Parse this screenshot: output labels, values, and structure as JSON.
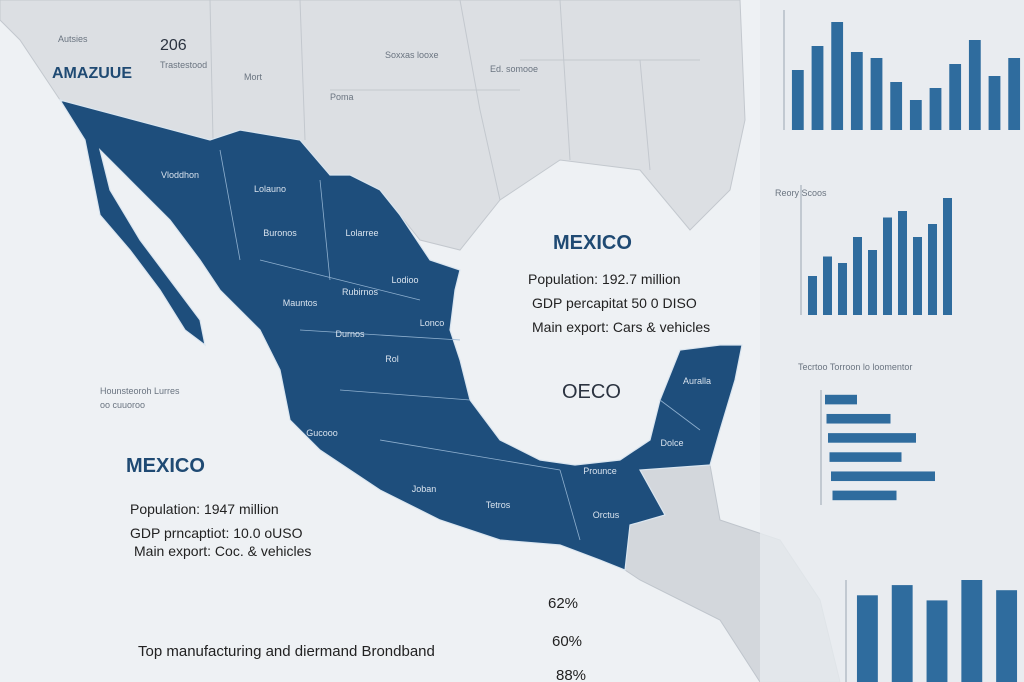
{
  "map": {
    "top_labels": [
      "Autsies",
      "206",
      "AMAZUUE",
      "Trastestood",
      "Mort",
      "Poma",
      "Soxxas looxe",
      "Ed. somooe"
    ],
    "state_labels": [
      "Vloddhon",
      "Lolauno",
      "Buronos",
      "Lolarree",
      "Mauntos",
      "Rubirnos",
      "Lodioo",
      "Lonco",
      "Durnos",
      "Rol",
      "Gucooo",
      "Tetros",
      "Joban",
      "Prounce",
      "Orctus",
      "Auralla",
      "Dolce"
    ],
    "side_labels": [
      "Hounsteoroh Lurres",
      "oo cuuoroo"
    ]
  },
  "info_right": {
    "title": "MEXICO",
    "population": "Population: 192.7 million",
    "gdp": "GDP percapitat 50 0 DISO",
    "export": "Main export: Cars & vehicles",
    "org": "OECO"
  },
  "info_left": {
    "title": "MEXICO",
    "population": "Population: 1947 million",
    "gdp": "GDP prncaptiot: 10.0 oUSO",
    "export": "Main export: Coc. & vehicles"
  },
  "footer": {
    "headline": "Top manufacturing and diermand Brondband",
    "percents": [
      "62%",
      "60%",
      "88%"
    ]
  },
  "charts": [
    {
      "type": "bar",
      "values": [
        5,
        7,
        9,
        6.5,
        6,
        4,
        2.5,
        3.5,
        5.5,
        7.5,
        4.5,
        6
      ],
      "ylim": [
        0,
        10
      ]
    },
    {
      "type": "bar",
      "title": "Reory Scoos",
      "values": [
        3,
        4.5,
        4,
        6,
        5,
        7.5,
        8,
        6,
        7,
        9
      ],
      "ylim": [
        0,
        10
      ]
    },
    {
      "type": "hbar",
      "title": "Tecrtoo Torroon lo loomentor",
      "values": [
        2,
        4,
        5.5,
        4.5,
        6.5,
        4
      ],
      "xlim": [
        0,
        10
      ]
    },
    {
      "type": "bar",
      "values": [
        8.5,
        9.5,
        8,
        10,
        9
      ],
      "ylim": [
        0,
        10
      ]
    }
  ]
}
